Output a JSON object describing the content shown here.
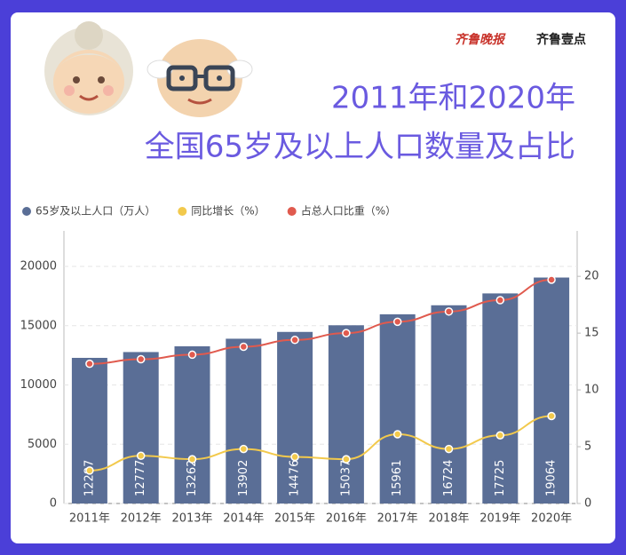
{
  "brand": {
    "left": "齐鲁晚报",
    "right": "齐鲁壹点"
  },
  "chart_data": {
    "type": "bar_line",
    "title": "2011年和2020年",
    "subtitle": "全国65岁及以上人口数量及占比",
    "categories": [
      "2011年",
      "2012年",
      "2013年",
      "2014年",
      "2015年",
      "2016年",
      "2017年",
      "2018年",
      "2019年",
      "2020年"
    ],
    "series": [
      {
        "name": "65岁及以上人口（万人）",
        "type": "bar",
        "color": "#5a6e96",
        "values": [
          12287,
          12777,
          13262,
          13902,
          14476,
          15037,
          15961,
          16724,
          17725,
          19064
        ]
      },
      {
        "name": "同比增长（%）",
        "type": "line",
        "axis": "y2",
        "color": "#f2c94c",
        "values": [
          2.9,
          4.2,
          3.9,
          4.8,
          4.1,
          3.9,
          6.1,
          4.8,
          6.0,
          7.7
        ]
      },
      {
        "name": "占总人口比重（%）",
        "type": "line",
        "axis": "y2",
        "color": "#e05a4e",
        "values": [
          12.3,
          12.7,
          13.1,
          13.8,
          14.4,
          15.0,
          16.0,
          16.9,
          17.9,
          19.7
        ]
      }
    ],
    "ylim": [
      0,
      23000
    ],
    "yticks": [
      0,
      5000,
      10000,
      15000,
      20000
    ],
    "y2lim": [
      0,
      24
    ],
    "y2ticks": [
      0,
      5,
      10,
      15,
      20
    ],
    "grid": true,
    "legend": "top-left"
  }
}
